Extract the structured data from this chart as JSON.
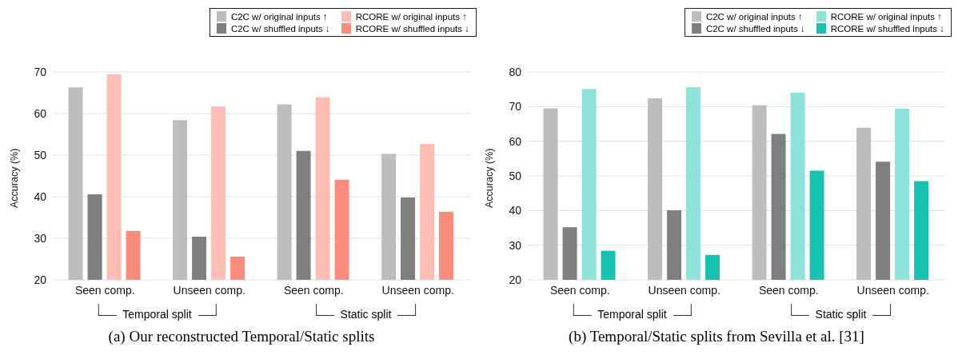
{
  "chart_data": [
    {
      "type": "bar",
      "title": "(a) Our reconstructed Temporal/Static splits",
      "ylabel": "Accuracy (%)",
      "categories": [
        "Seen comp.",
        "Unseen comp.",
        "Seen comp.",
        "Unseen comp."
      ],
      "series": [
        {
          "name": "C2C w/ original inputs ↑",
          "color": "#bdbdbd",
          "values": [
            66.3,
            58.4,
            62.2,
            50.3
          ]
        },
        {
          "name": "C2C w/ shuffled inputs ↓",
          "color": "#7f7f7f",
          "values": [
            40.6,
            30.4,
            51.0,
            39.8
          ]
        },
        {
          "name": "RCORE w/ original inputs ↑",
          "color": "#fdbcb4",
          "values": [
            69.4,
            61.7,
            63.9,
            52.7
          ]
        },
        {
          "name": "RCORE w/ shuffled inputs ↓",
          "color": "#fa8c7e",
          "values": [
            31.8,
            25.6,
            44.1,
            36.4
          ]
        }
      ],
      "ylim": [
        20,
        70
      ],
      "yticks": [
        20,
        30,
        40,
        50,
        60,
        70
      ],
      "grid": "y",
      "legend": "top right",
      "annotations": [
        "Temporal split",
        "Static split"
      ]
    },
    {
      "type": "bar",
      "title": "(b) Temporal/Static splits from Sevilla et al. [31]",
      "ylabel": "Accuracy (%)",
      "categories": [
        "Seen comp.",
        "Unseen comp.",
        "Seen comp.",
        "Unseen comp."
      ],
      "series": [
        {
          "name": "C2C w/ original inputs ↑",
          "color": "#bdbdbd",
          "values": [
            69.5,
            72.4,
            70.4,
            63.9
          ]
        },
        {
          "name": "C2C w/ shuffled inputs ↓",
          "color": "#7f7f7f",
          "values": [
            35.2,
            40.1,
            62.1,
            54.1
          ]
        },
        {
          "name": "RCORE w/ original inputs ↑",
          "color": "#8ee2d9",
          "values": [
            75.1,
            75.6,
            74.0,
            69.4
          ]
        },
        {
          "name": "RCORE w/ shuffled inputs ↓",
          "color": "#17c2b2",
          "values": [
            28.4,
            27.2,
            51.5,
            48.5
          ]
        }
      ],
      "ylim": [
        20,
        80
      ],
      "yticks": [
        20,
        30,
        40,
        50,
        60,
        70,
        80
      ],
      "grid": "y",
      "legend": "top right",
      "annotations": [
        "Temporal split",
        "Static split"
      ]
    }
  ]
}
